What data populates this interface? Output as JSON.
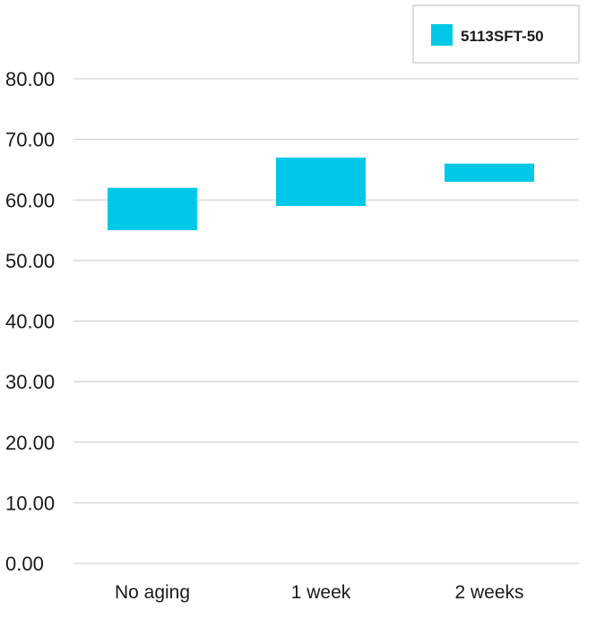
{
  "chart_data": {
    "type": "bar",
    "subtype": "floating-range",
    "categories": [
      "No aging",
      "1 week",
      "2 weeks"
    ],
    "series": [
      {
        "name": "5113SFT-50",
        "color": "#00c8e6",
        "ranges": [
          [
            55,
            62
          ],
          [
            59,
            67
          ],
          [
            63,
            66
          ]
        ]
      }
    ],
    "ylim": [
      0,
      80
    ],
    "yticks": [
      "0.00",
      "10.00",
      "20.00",
      "30.00",
      "40.00",
      "50.00",
      "60.00",
      "70.00",
      "80.00"
    ],
    "grid": true,
    "legend_position": "top-right",
    "title": "",
    "xlabel": "",
    "ylabel": ""
  }
}
